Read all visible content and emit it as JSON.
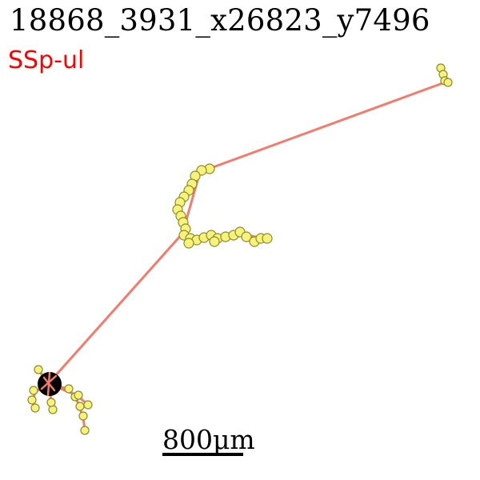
{
  "title": "18868_3931_x26823_y7496",
  "region": "SSp-ul",
  "scale": {
    "value": "800",
    "unit": "μm",
    "label": "800μm"
  },
  "colors": {
    "axon_line": "#f57a6c",
    "node_fill": "#f7f27a",
    "node_stroke": "#8a8a30",
    "soma": "#000000",
    "region_text": "#ff0000"
  }
}
